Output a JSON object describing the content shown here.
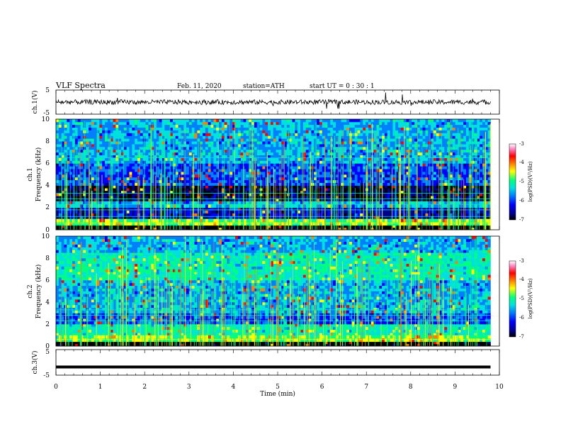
{
  "header": {
    "title": "VLF  Spectra",
    "date": "Feb. 11, 2020",
    "station": "station=ATH",
    "start": "start  UT  =    0  : 30 : 1"
  },
  "chart_data": [
    {
      "type": "line",
      "panel": "ch1-waveform",
      "ylabel": "ch.1(V)",
      "yticks": [
        "5",
        "-5"
      ],
      "ylim": [
        -5,
        5
      ],
      "xlim": [
        0,
        10
      ],
      "trace_color": "#000000",
      "description_values": {
        "x_end_min": 9.8,
        "baseline_v": 0,
        "amplitude_v": 1
      }
    },
    {
      "type": "heatmap",
      "panel": "ch1-spectrogram",
      "ylabel": [
        "ch.1",
        "Frequency  (kHz)"
      ],
      "yticks": [
        "10",
        "8",
        "6",
        "4",
        "2",
        "0"
      ],
      "ylim": [
        0,
        10
      ],
      "xlim": [
        0,
        9.8
      ],
      "colorbar": {
        "label": "log(PSD)(V²/Hz)",
        "ticks": [
          "-3",
          "-4",
          "-5",
          "-6",
          "-7"
        ],
        "range": [
          -7,
          -3
        ]
      }
    },
    {
      "type": "heatmap",
      "panel": "ch2-spectrogram",
      "ylabel": [
        "ch.2",
        "Frequency  (kHz)"
      ],
      "yticks": [
        "10",
        "8",
        "6",
        "4",
        "2",
        "0"
      ],
      "ylim": [
        0,
        10
      ],
      "xlim": [
        0,
        9.8
      ],
      "colorbar": {
        "label": "log(PSD)(V²/Hz)",
        "ticks": [
          "-3",
          "-4",
          "-5",
          "-6",
          "-7"
        ],
        "range": [
          -7,
          -3
        ]
      }
    },
    {
      "type": "line",
      "panel": "ch3-waveform",
      "ylabel": "ch.3(V)",
      "yticks": [
        "5",
        "-5"
      ],
      "ylim": [
        -5,
        5
      ],
      "xlim": [
        0,
        10
      ],
      "trace_color": "#000000",
      "description_values": {
        "x_end_min": 9.8,
        "baseline_v": -1.8
      }
    }
  ],
  "xaxis": {
    "label": "Time  (min)",
    "ticks": [
      "0",
      "1",
      "2",
      "3",
      "4",
      "5",
      "6",
      "7",
      "8",
      "9",
      "10"
    ],
    "range": [
      0,
      10
    ]
  },
  "colorscale": [
    "#000000",
    "#00008b",
    "#0000ff",
    "#0080ff",
    "#00e0e0",
    "#00ff80",
    "#ffff00",
    "#ff8000",
    "#ff0000",
    "#ff80c0",
    "#ffffff"
  ]
}
